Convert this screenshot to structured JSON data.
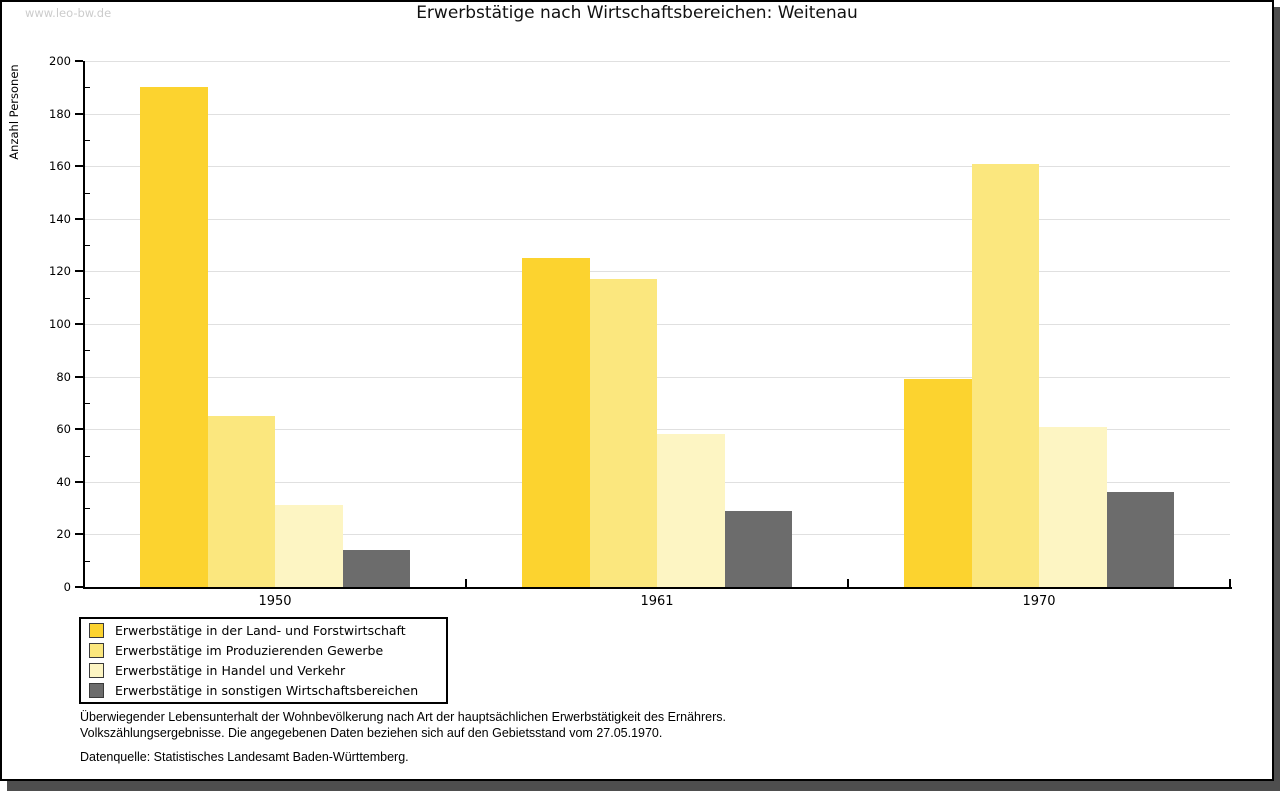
{
  "watermark": "www.leo-bw.de",
  "title": "Erwerbstätige nach Wirtschaftsbereichen: Weitenau",
  "chart_data": {
    "type": "bar",
    "title": "Erwerbstätige nach Wirtschaftsbereichen: Weitenau",
    "xlabel": "",
    "ylabel": "Anzahl Personen",
    "categories": [
      "1950",
      "1961",
      "1970"
    ],
    "series": [
      {
        "name": "Erwerbstätige in der Land- und Forstwirtschaft",
        "color": "#FCD32F",
        "values": [
          190,
          125,
          79
        ]
      },
      {
        "name": "Erwerbstätige im Produzierenden Gewerbe",
        "color": "#FBE77E",
        "values": [
          65,
          117,
          161
        ]
      },
      {
        "name": "Erwerbstätige in Handel und Verkehr",
        "color": "#FDF5C3",
        "values": [
          31,
          58,
          61
        ]
      },
      {
        "name": "Erwerbstätige in sonstigen Wirtschaftsbereichen",
        "color": "#6C6C6C",
        "values": [
          14,
          29,
          36
        ]
      }
    ],
    "ylim": [
      0,
      200
    ],
    "yticks": [
      0,
      20,
      40,
      60,
      80,
      100,
      120,
      140,
      160,
      180,
      200
    ],
    "minor_tick_step": 10,
    "grid": "horizontal",
    "gridline_color": "#e0e0e0",
    "legend_position": "bottom-left"
  },
  "footnotes": {
    "line1": "Überwiegender Lebensunterhalt der Wohnbevölkerung nach Art der hauptsächlichen Erwerbstätigkeit des Ernährers.",
    "line2": "Volkszählungsergebnisse. Die angegebenen Daten beziehen sich auf den Gebietsstand vom 27.05.1970.",
    "source": "Datenquelle: Statistisches Landesamt Baden-Württemberg."
  }
}
